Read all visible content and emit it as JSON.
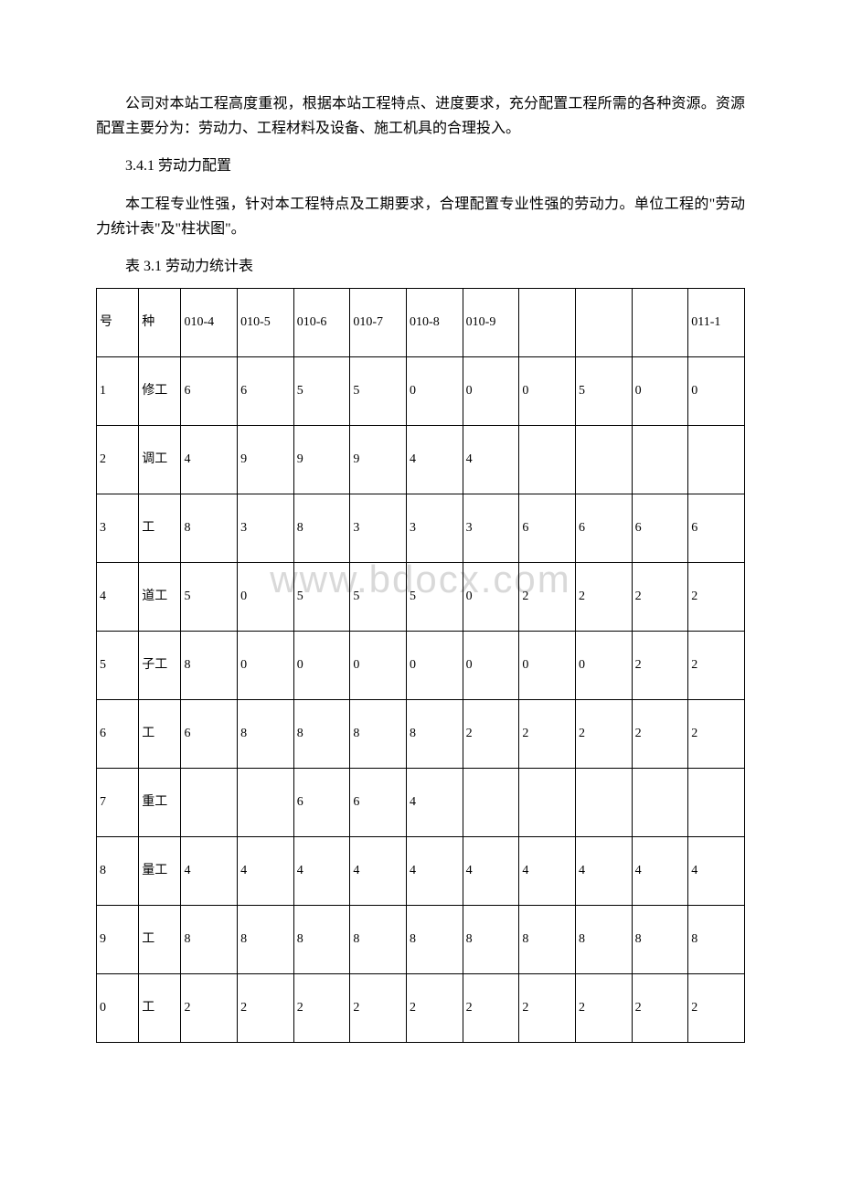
{
  "text": {
    "intro_para": "公司对本站工程高度重视，根据本站工程特点、进度要求，充分配置工程所需的各种资源。资源配置主要分为：劳动力、工程材料及设备、施工机具的合理投入。",
    "section_heading": "3.4.1 劳动力配置",
    "labor_para": "本工程专业性强，针对本工程特点及工期要求，合理配置专业性强的劳动力。单位工程的\"劳动力统计表\"及\"柱状图\"。",
    "table_caption": "表 3.1 劳动力统计表"
  },
  "watermark": "www.bdocx.com",
  "table": {
    "headers": {
      "seq": "号",
      "type": "种",
      "months": [
        "010-4",
        "010-5",
        "010-6",
        "010-7",
        "010-8",
        "010-9",
        "",
        "",
        "",
        "011-1"
      ]
    },
    "rows": [
      {
        "seq": "1",
        "type": "修工",
        "vals": [
          "6",
          "6",
          "5",
          "5",
          "0",
          "0",
          "0",
          "5",
          "0",
          "0"
        ]
      },
      {
        "seq": "2",
        "type": "调工",
        "vals": [
          "4",
          "9",
          "9",
          "9",
          "4",
          "4",
          "",
          "",
          "",
          ""
        ]
      },
      {
        "seq": "3",
        "type": "工",
        "vals": [
          "8",
          "3",
          "8",
          "3",
          "3",
          "3",
          "6",
          "6",
          "6",
          "6"
        ]
      },
      {
        "seq": "4",
        "type": "道工",
        "vals": [
          "5",
          "0",
          "5",
          "5",
          "5",
          "0",
          "2",
          "2",
          "2",
          "2"
        ]
      },
      {
        "seq": "5",
        "type": "子工",
        "vals": [
          "8",
          "0",
          "0",
          "0",
          "0",
          "0",
          "0",
          "0",
          "2",
          "2"
        ]
      },
      {
        "seq": "6",
        "type": "工",
        "vals": [
          "6",
          "8",
          "8",
          "8",
          "8",
          "2",
          "2",
          "2",
          "2",
          "2"
        ]
      },
      {
        "seq": "7",
        "type": "重工",
        "vals": [
          "",
          "",
          "6",
          "6",
          "4",
          "",
          "",
          "",
          "",
          ""
        ]
      },
      {
        "seq": "8",
        "type": "量工",
        "vals": [
          "4",
          "4",
          "4",
          "4",
          "4",
          "4",
          "4",
          "4",
          "4",
          "4"
        ]
      },
      {
        "seq": "9",
        "type": "工",
        "vals": [
          "8",
          "8",
          "8",
          "8",
          "8",
          "8",
          "8",
          "8",
          "8",
          "8"
        ]
      },
      {
        "seq": "0",
        "type": "工",
        "vals": [
          "2",
          "2",
          "2",
          "2",
          "2",
          "2",
          "2",
          "2",
          "2",
          "2"
        ]
      }
    ]
  }
}
